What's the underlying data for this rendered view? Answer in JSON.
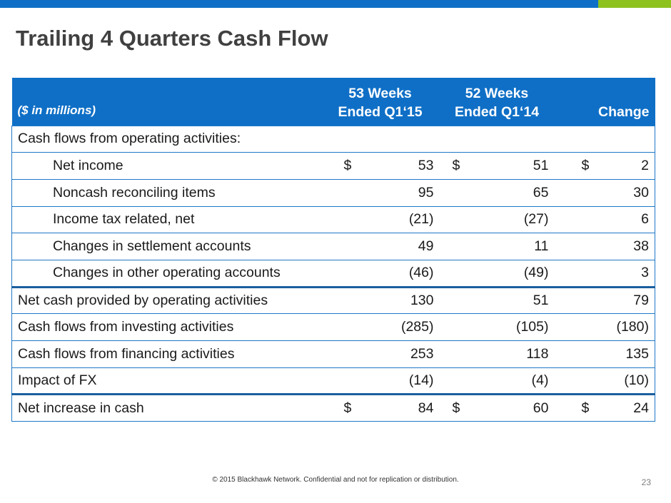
{
  "slide": {
    "title": "Trailing 4 Quarters Cash Flow",
    "footer": "© 2015 Blackhawk Network. Confidential and not for replication or distribution.",
    "page_number": "23",
    "colors": {
      "primary_blue": "#0f6fc6",
      "accent_green": "#8dc21f",
      "title_gray": "#404040"
    }
  },
  "table": {
    "header": {
      "label": "($ in millions)",
      "col1_line1": "53 Weeks",
      "col1_line2": "Ended Q1‘15",
      "col2_line1": "52 Weeks",
      "col2_line2": "Ended Q1‘14",
      "col3": "Change"
    },
    "rows": [
      {
        "label": "Cash flows from operating activities:",
        "v1": "",
        "v2": "",
        "v3": ""
      },
      {
        "label": "Net income",
        "v1": "53",
        "v2": "51",
        "v3": "2",
        "currency": "$"
      },
      {
        "label": "Noncash reconciling items",
        "v1": "95",
        "v2": "65",
        "v3": "30"
      },
      {
        "label": "Income tax related, net",
        "v1": "(21)",
        "v2": "(27)",
        "v3": "6"
      },
      {
        "label": "Changes in settlement accounts",
        "v1": "49",
        "v2": "11",
        "v3": "38"
      },
      {
        "label": "Changes in other operating accounts",
        "v1": "(46)",
        "v2": "(49)",
        "v3": "3"
      },
      {
        "label": "Net cash provided by operating activities",
        "v1": "130",
        "v2": "51",
        "v3": "79"
      },
      {
        "label": "Cash flows from investing activities",
        "v1": "(285)",
        "v2": "(105)",
        "v3": "(180)"
      },
      {
        "label": "Cash flows from financing activities",
        "v1": "253",
        "v2": "118",
        "v3": "135"
      },
      {
        "label": "Impact of FX",
        "v1": "(14)",
        "v2": "(4)",
        "v3": "(10)"
      },
      {
        "label": "Net increase in cash",
        "v1": "84",
        "v2": "60",
        "v3": "24",
        "currency": "$"
      }
    ]
  }
}
